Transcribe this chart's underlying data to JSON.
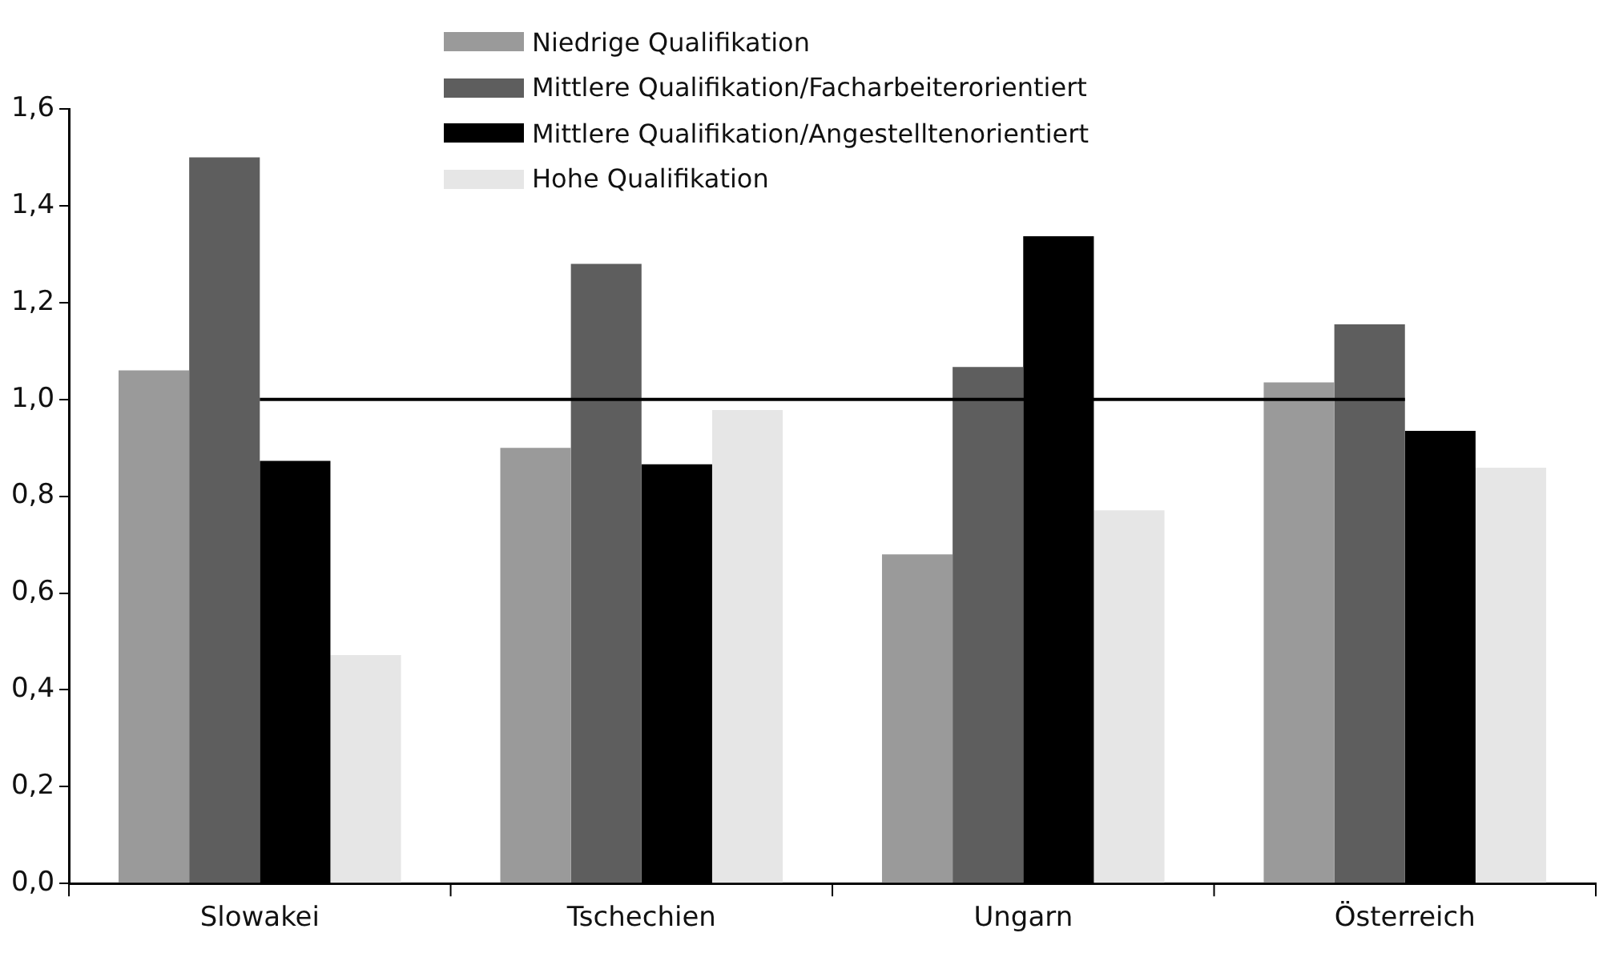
{
  "chart_data": {
    "type": "bar",
    "categories": [
      "Slowakei",
      "Tschechien",
      "Ungarn",
      "Österreich"
    ],
    "series": [
      {
        "name": "Niedrige Qualifikation",
        "color": "#9a9a9a",
        "values": [
          1.06,
          0.9,
          0.68,
          1.035
        ]
      },
      {
        "name": "Mittlere Qualifikation/Facharbeiterorientiert",
        "color": "#5e5e5e",
        "values": [
          1.5,
          1.28,
          1.067,
          1.155
        ]
      },
      {
        "name": "Mittlere Qualifikation/Angestelltenorientiert",
        "color": "#000000",
        "values": [
          0.873,
          0.866,
          1.337,
          0.935
        ]
      },
      {
        "name": "Hohe Qualifikation",
        "color": "#e6e6e6",
        "values": [
          0.472,
          0.978,
          0.771,
          0.859
        ]
      }
    ],
    "ylim": [
      0,
      1.6
    ],
    "yticks": [
      {
        "value": 0,
        "label": "0,0"
      },
      {
        "value": 0.2,
        "label": "0,2"
      },
      {
        "value": 0.4,
        "label": "0,4"
      },
      {
        "value": 0.6,
        "label": "0,6"
      },
      {
        "value": 0.8,
        "label": "0,8"
      },
      {
        "value": 1.0,
        "label": "1,0"
      },
      {
        "value": 1.2,
        "label": "1,2"
      },
      {
        "value": 1.4,
        "label": "1,4"
      },
      {
        "value": 1.6,
        "label": "1,6"
      }
    ],
    "ref_lines": [
      {
        "axis": "y",
        "value": 1.0,
        "color": "#000000"
      }
    ],
    "grid": false,
    "legend": "top"
  }
}
